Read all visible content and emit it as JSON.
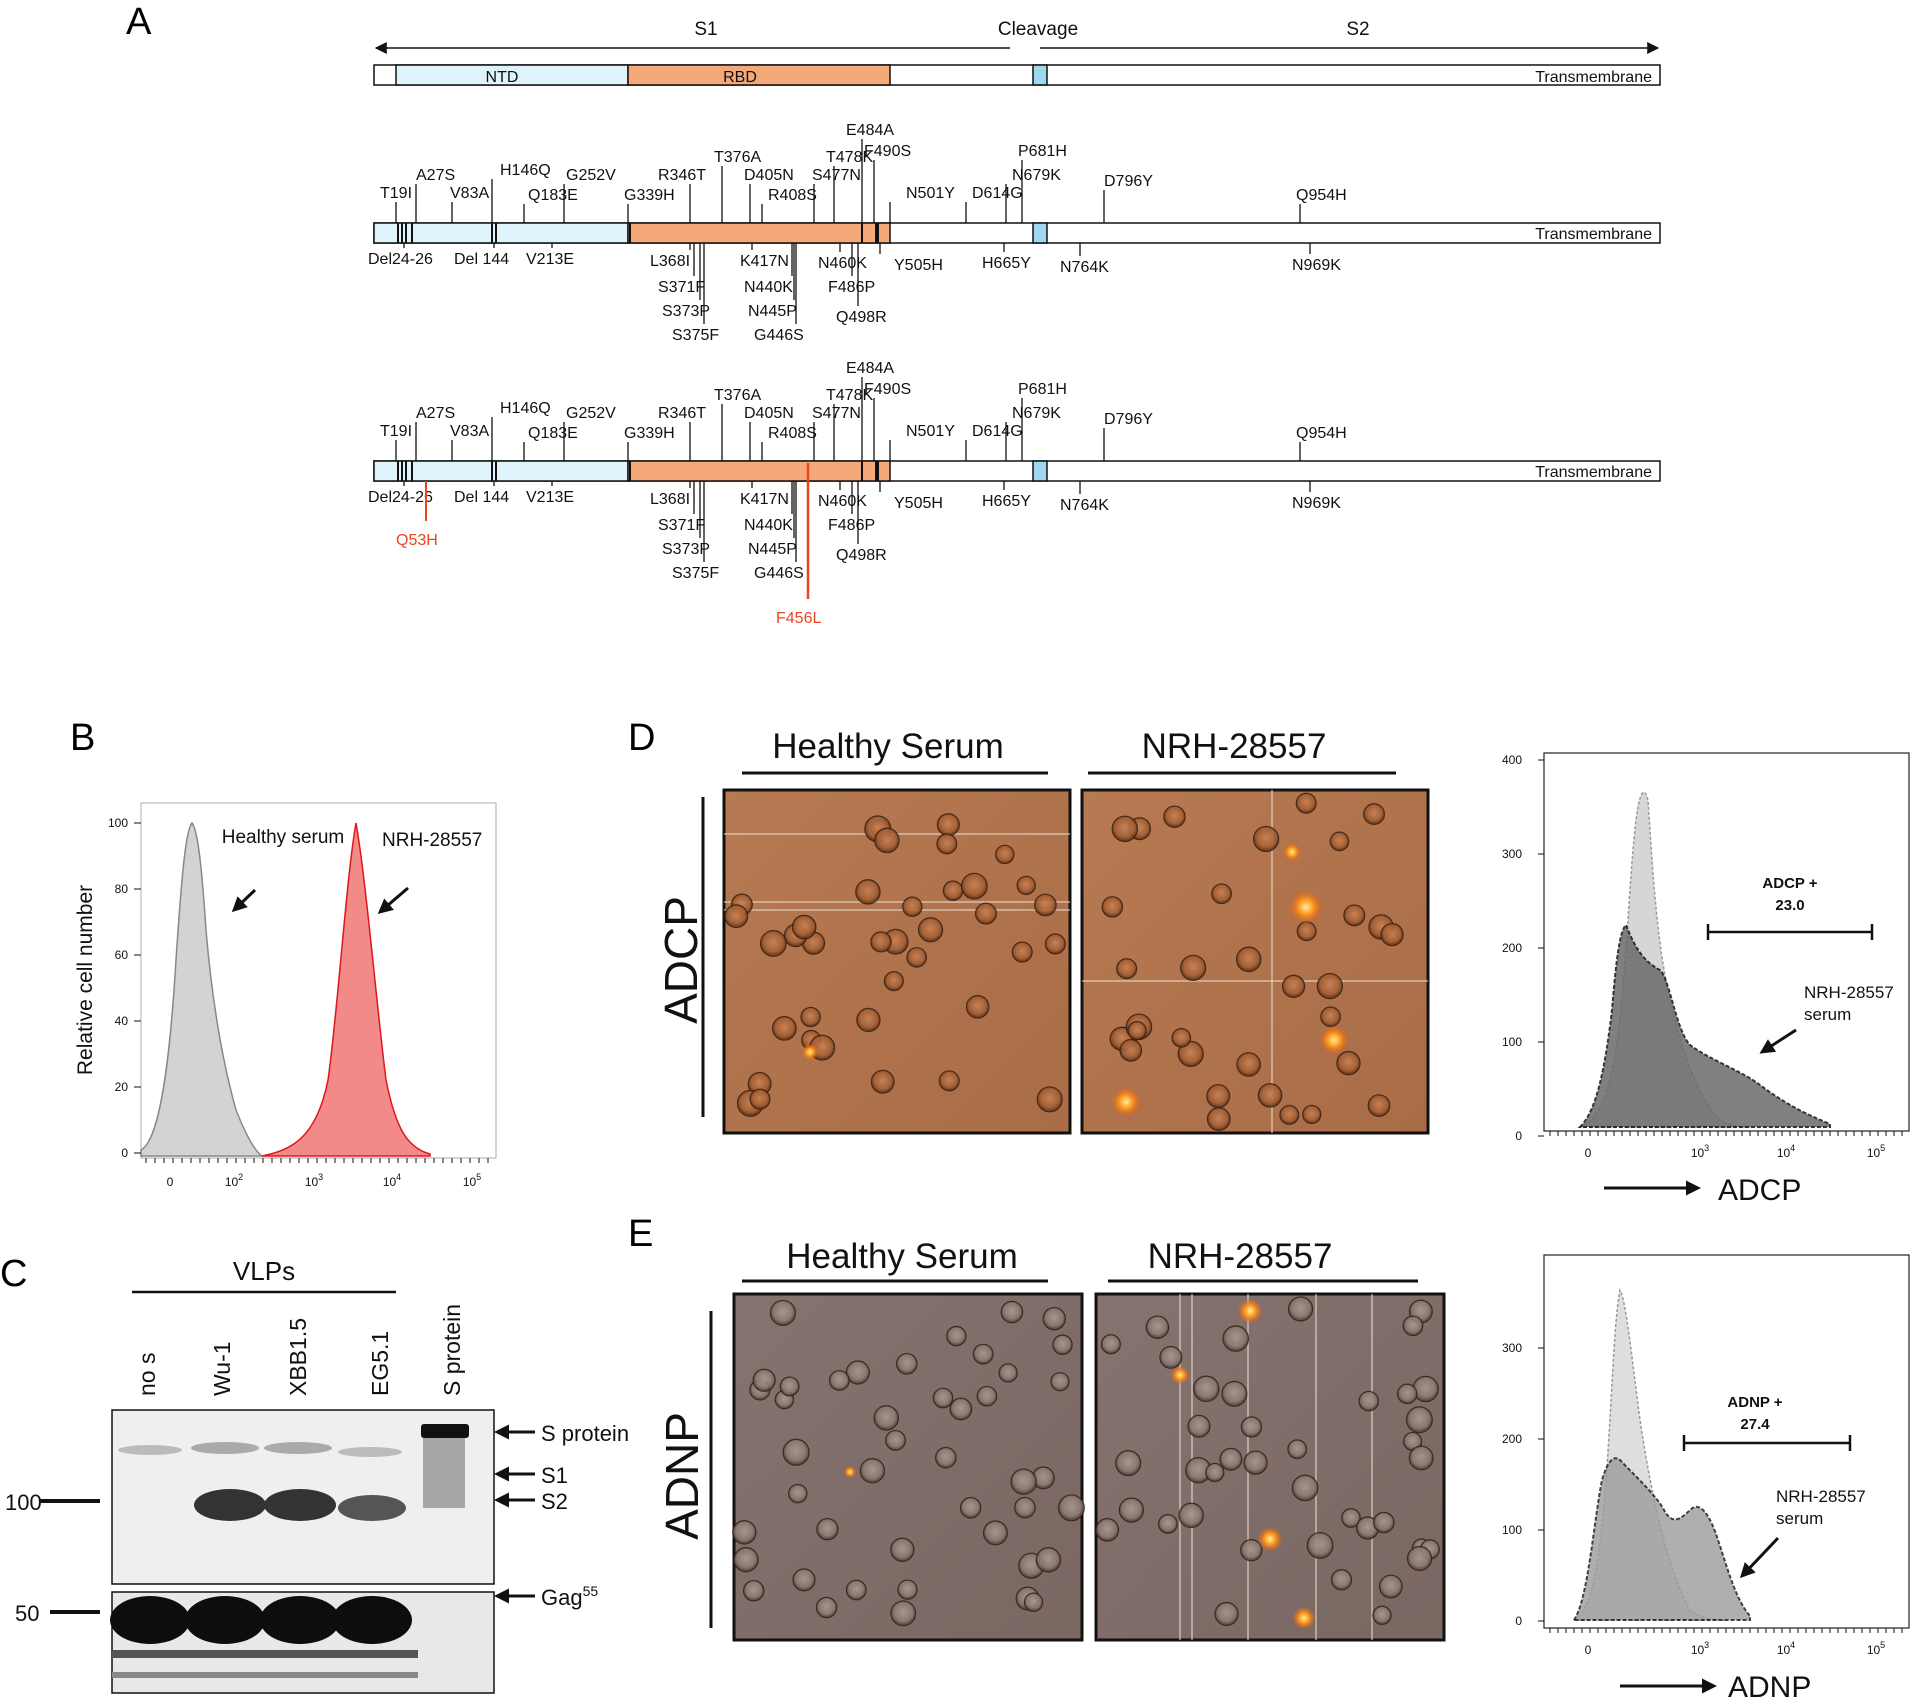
{
  "panel_letters": {
    "a": "A",
    "b": "B",
    "c": "C",
    "d": "D",
    "e": "E"
  },
  "panel_a": {
    "s1": "S1",
    "cleavage": "Cleavage",
    "s2": "S2",
    "ntd": "NTD",
    "rbd": "RBD",
    "transmembrane": "Transmembrane",
    "mutations_above": [
      "T19I",
      "A27S",
      "V83A",
      "H146Q",
      "Q183E",
      "G252V",
      "G339H",
      "R346T",
      "T376A",
      "D405N",
      "R408S",
      "S477N",
      "T478K",
      "E484A",
      "F490S",
      "N501Y",
      "D614G",
      "N679K",
      "P681H",
      "D796Y",
      "Q954H"
    ],
    "mutations_below": [
      "Del24-26",
      "Del 144",
      "V213E",
      "L368I",
      "S371F",
      "S373P",
      "S375F",
      "K417N",
      "N440K",
      "N445P",
      "G446S",
      "N460K",
      "F486P",
      "Q498R",
      "Y505H",
      "H665Y",
      "N764K",
      "N969K"
    ],
    "extra_mutations": [
      "Q53H",
      "F456L"
    ],
    "highlight_color": "#e8461e"
  },
  "panel_b": {
    "ylabel": "Relative cell number",
    "yticks": [
      "100",
      "80",
      "60",
      "40",
      "20",
      "0"
    ],
    "xticks": [
      "0",
      "10",
      "10",
      "10",
      "10"
    ],
    "xexp": [
      "2",
      "3",
      "4",
      "5"
    ],
    "label_healthy": "Healthy serum",
    "label_nrh": "NRH-28557",
    "colors": {
      "healthy": "#c8c8c8",
      "nrh": "#f07070"
    }
  },
  "panel_c": {
    "vlps": "VLPs",
    "lanes": [
      "no s",
      "Wu-1",
      "XBB1.5",
      "EG5.1",
      "S protein"
    ],
    "markers": [
      "100",
      "50"
    ],
    "bands": [
      "S protein",
      "S1",
      "S2",
      "Gag"
    ],
    "gag_sup": "55"
  },
  "panel_d": {
    "healthy": "Healthy Serum",
    "nrh": "NRH-28557",
    "side": "ADCP",
    "yticks": [
      "400",
      "300",
      "200",
      "100",
      "0"
    ],
    "gate_label": "ADCP +",
    "gate_value": "23.0",
    "arrow_label": "NRH-28557",
    "arrow_label2": "serum",
    "xaxis": "ADCP"
  },
  "panel_e": {
    "healthy": "Healthy Serum",
    "nrh": "NRH-28557",
    "side": "ADNP",
    "yticks": [
      "300",
      "200",
      "100",
      "0"
    ],
    "gate_label": "ADNP +",
    "gate_value": "27.4",
    "arrow_label": "NRH-28557",
    "arrow_label2": "serum",
    "xaxis": "ADNP"
  }
}
